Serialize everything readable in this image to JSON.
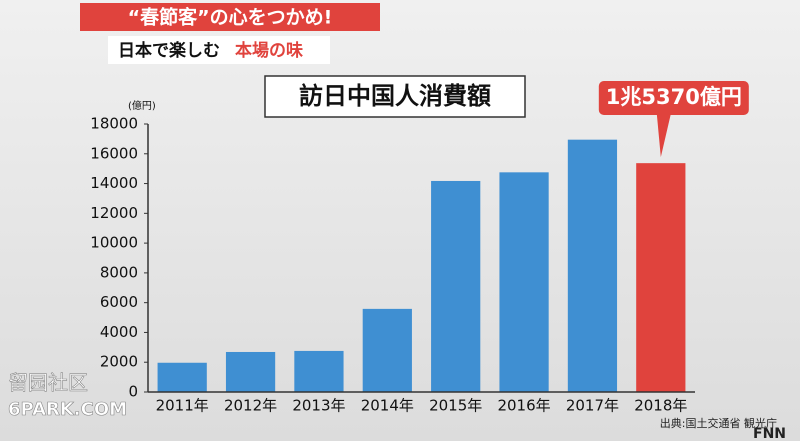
{
  "banner": {
    "headline": "“春節客”の心をつかめ!",
    "sub_black": "日本で楽しむ",
    "sub_red": "本場の味"
  },
  "chart_data": {
    "type": "bar",
    "title": "訪日中国人消費額",
    "y_unit": "(億円)",
    "categories": [
      "2011年",
      "2012年",
      "2013年",
      "2014年",
      "2015年",
      "2016年",
      "2017年",
      "2018年"
    ],
    "values": [
      1964,
      2688,
      2759,
      5583,
      14174,
      14754,
      16947,
      15370
    ],
    "colors": [
      "#3f8fd2",
      "#3f8fd2",
      "#3f8fd2",
      "#3f8fd2",
      "#3f8fd2",
      "#3f8fd2",
      "#3f8fd2",
      "#e0433d"
    ],
    "ylim": [
      0,
      18000
    ],
    "yticks": [
      0,
      2000,
      4000,
      6000,
      8000,
      10000,
      12000,
      14000,
      16000,
      18000
    ],
    "annotation": "1兆5370億円",
    "source": "出典:国土交通省 観光庁"
  },
  "logo": "FNN",
  "watermark": [
    "留园社区",
    "6PARK.COM"
  ]
}
